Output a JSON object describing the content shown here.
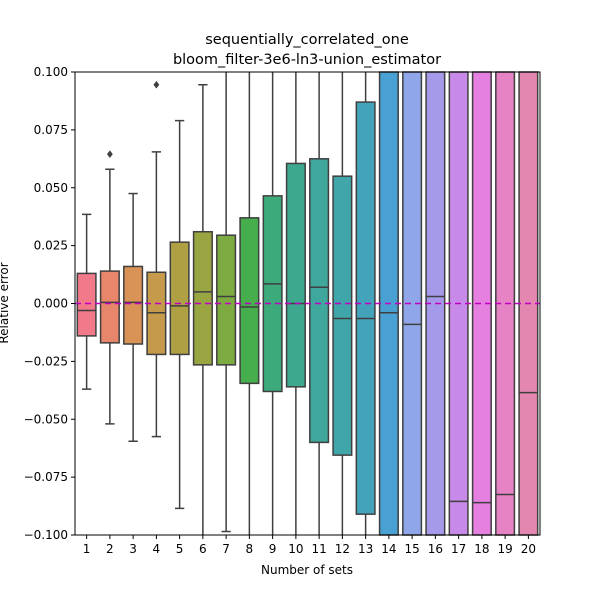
{
  "chart_data": {
    "type": "box",
    "title": [
      "sequentially_correlated_one",
      "bloom_filter-3e6-ln3-union_estimator"
    ],
    "xlabel": "Number of sets",
    "ylabel": "Relative error",
    "ylim": [
      -0.1,
      0.1
    ],
    "yticks": [
      -0.1,
      -0.075,
      -0.05,
      -0.025,
      0.0,
      0.025,
      0.05,
      0.075,
      0.1
    ],
    "ytick_labels": [
      "−0.100",
      "−0.075",
      "−0.050",
      "−0.025",
      "0.000",
      "0.025",
      "0.050",
      "0.075",
      "0.100"
    ],
    "reference_line": {
      "y": 0.0,
      "color": "#c000c0",
      "style": "dashed"
    },
    "grid": false,
    "categories": [
      "1",
      "2",
      "3",
      "4",
      "5",
      "6",
      "7",
      "8",
      "9",
      "10",
      "11",
      "12",
      "13",
      "14",
      "15",
      "16",
      "17",
      "18",
      "19",
      "20"
    ],
    "boxes": [
      {
        "q1": -0.014,
        "median": -0.003,
        "q3": 0.013,
        "whislo": -0.037,
        "whishi": 0.0385,
        "fliers": [],
        "color": "#f2798a"
      },
      {
        "q1": -0.017,
        "median": 0.0005,
        "q3": 0.014,
        "whislo": -0.052,
        "whishi": 0.058,
        "fliers": [
          0.0645
        ],
        "color": "#e8866b"
      },
      {
        "q1": -0.0175,
        "median": 0.0005,
        "q3": 0.016,
        "whislo": -0.0595,
        "whishi": 0.0475,
        "fliers": [],
        "color": "#d99356"
      },
      {
        "q1": -0.022,
        "median": -0.004,
        "q3": 0.0135,
        "whislo": -0.0575,
        "whishi": 0.0655,
        "fliers": [
          0.0945
        ],
        "color": "#c59a4b"
      },
      {
        "q1": -0.022,
        "median": -0.001,
        "q3": 0.0265,
        "whislo": -0.0885,
        "whishi": 0.079,
        "fliers": [],
        "color": "#b0a044"
      },
      {
        "q1": -0.0265,
        "median": 0.005,
        "q3": 0.031,
        "whislo": -0.1,
        "whishi": 0.0945,
        "fliers": [],
        "color": "#99a540"
      },
      {
        "q1": -0.0265,
        "median": 0.003,
        "q3": 0.0295,
        "whislo": -0.0985,
        "whishi": 0.1,
        "fliers": [],
        "color": "#7eaa42"
      },
      {
        "q1": -0.0345,
        "median": -0.0015,
        "q3": 0.037,
        "whislo": -0.1,
        "whishi": 0.1,
        "fliers": [],
        "color": "#46ae4c"
      },
      {
        "q1": -0.038,
        "median": 0.0085,
        "q3": 0.0465,
        "whislo": -0.1,
        "whishi": 0.1,
        "fliers": [],
        "color": "#3daa7c"
      },
      {
        "q1": -0.036,
        "median": 0.0,
        "q3": 0.0605,
        "whislo": -0.1,
        "whishi": 0.1,
        "fliers": [],
        "color": "#3ea88f"
      },
      {
        "q1": -0.06,
        "median": 0.007,
        "q3": 0.0625,
        "whislo": -0.1,
        "whishi": 0.1,
        "fliers": [],
        "color": "#3fa79c"
      },
      {
        "q1": -0.0655,
        "median": -0.0065,
        "q3": 0.055,
        "whislo": -0.1,
        "whishi": 0.1,
        "fliers": [],
        "color": "#41a6a9"
      },
      {
        "q1": -0.091,
        "median": -0.0065,
        "q3": 0.087,
        "whislo": -0.1,
        "whishi": 0.1,
        "fliers": [],
        "color": "#43a3ba"
      },
      {
        "q1": -0.1,
        "median": -0.004,
        "q3": 0.1,
        "whislo": -0.1,
        "whishi": 0.1,
        "fliers": [],
        "color": "#49a0d2"
      },
      {
        "q1": -0.1,
        "median": -0.009,
        "q3": 0.1,
        "whislo": -0.1,
        "whishi": 0.1,
        "fliers": [],
        "color": "#8fa6e8"
      },
      {
        "q1": -0.1,
        "median": 0.003,
        "q3": 0.1,
        "whislo": -0.1,
        "whishi": 0.1,
        "fliers": [],
        "color": "#a59ae9"
      },
      {
        "q1": -0.1,
        "median": -0.0855,
        "q3": 0.1,
        "whislo": -0.1,
        "whishi": 0.1,
        "fliers": [],
        "color": "#c88ae8"
      },
      {
        "q1": -0.1,
        "median": -0.086,
        "q3": 0.1,
        "whislo": -0.1,
        "whishi": 0.1,
        "fliers": [],
        "color": "#e57fe0"
      },
      {
        "q1": -0.1,
        "median": -0.0825,
        "q3": 0.1,
        "whislo": -0.1,
        "whishi": 0.1,
        "fliers": [],
        "color": "#e583c4"
      },
      {
        "q1": -0.1,
        "median": -0.0385,
        "q3": 0.1,
        "whislo": -0.1,
        "whishi": 0.1,
        "fliers": [],
        "color": "#e487b0"
      }
    ]
  }
}
